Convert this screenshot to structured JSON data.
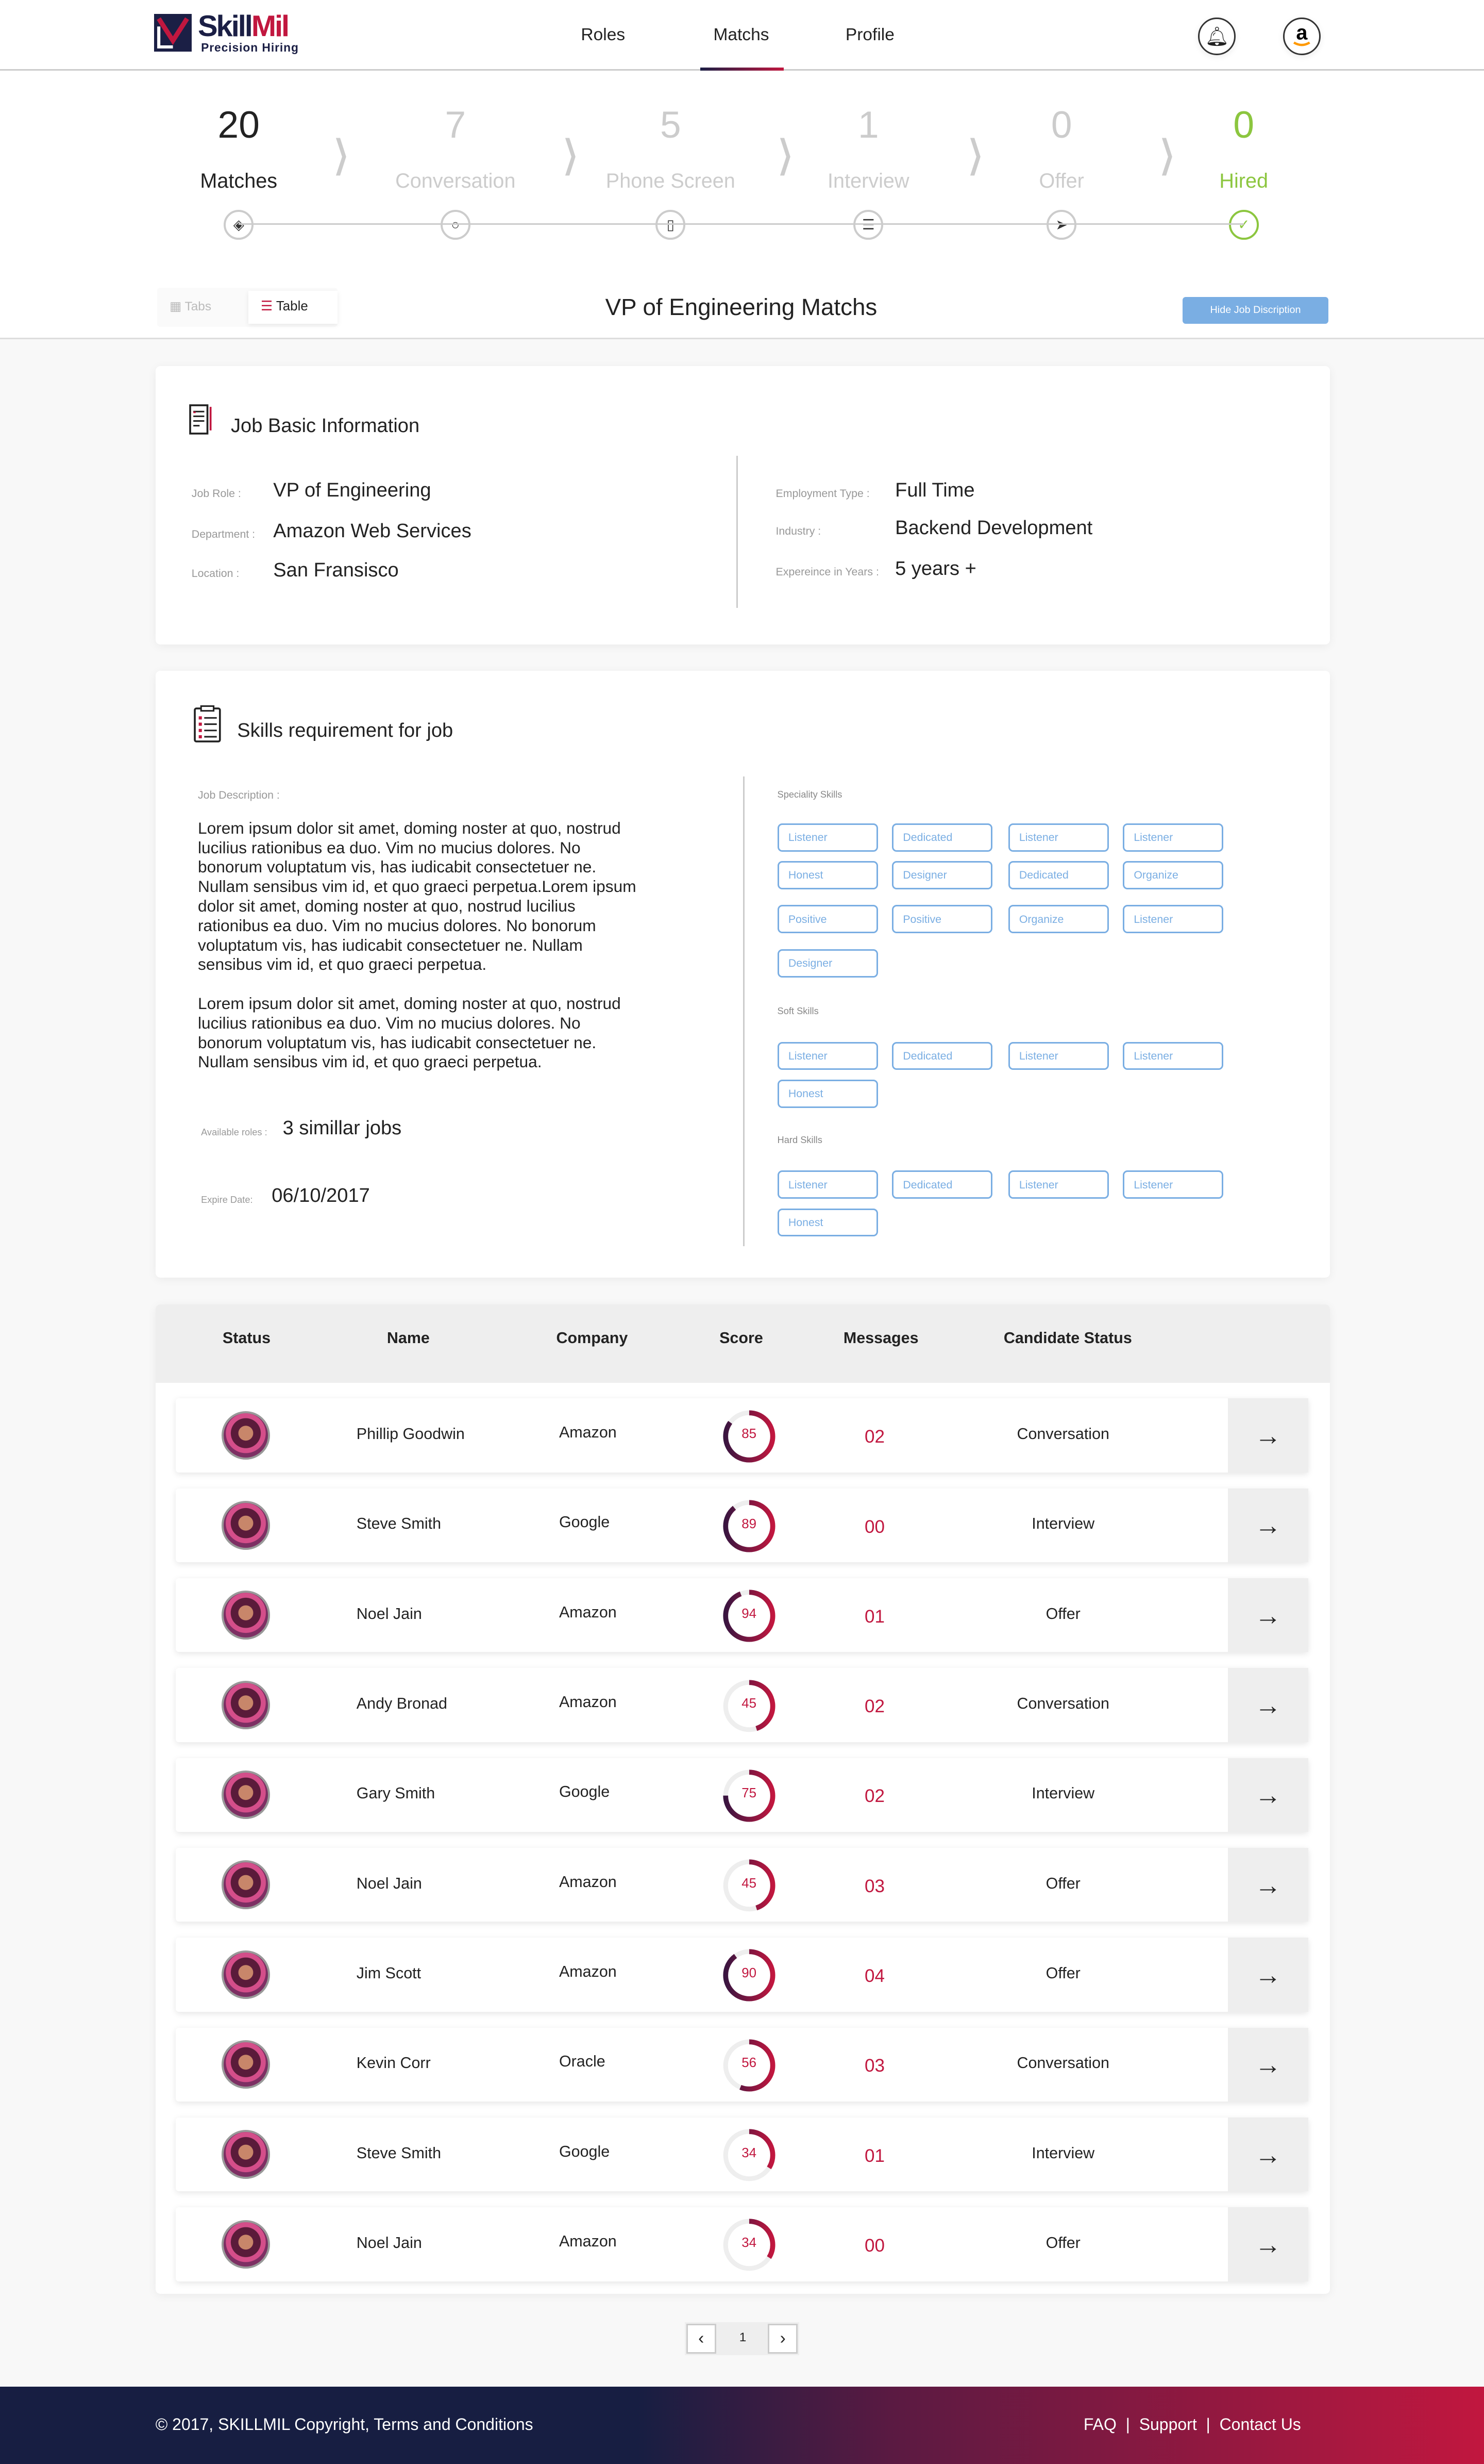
{
  "header": {
    "logo": {
      "brand_part1": "Skill",
      "brand_part2": "Mil",
      "tagline": "Precision  Hiring"
    },
    "nav": [
      {
        "label": "Roles"
      },
      {
        "label": "Matchs",
        "active": true
      },
      {
        "label": "Profile"
      }
    ],
    "icons": [
      "bell-icon",
      "amazon-avatar"
    ]
  },
  "pipeline": [
    {
      "count": "20",
      "label": "Matches",
      "icon": "layers-icon",
      "state": "active"
    },
    {
      "count": "7",
      "label": "Conversation",
      "icon": "chat-bubble-icon",
      "state": "inactive"
    },
    {
      "count": "5",
      "label": "Phone Screen",
      "icon": "phone-icon",
      "state": "inactive"
    },
    {
      "count": "1",
      "label": "Interview",
      "icon": "clipboard-icon",
      "state": "inactive"
    },
    {
      "count": "0",
      "label": "Offer",
      "icon": "paper-plane-icon",
      "state": "inactive"
    },
    {
      "count": "0",
      "label": "Hired",
      "icon": "check-icon",
      "state": "success"
    }
  ],
  "view_toggle": {
    "tabs_label": "Tabs",
    "table_label": "Table",
    "selected": "Table"
  },
  "page_title": "VP of Engineering Matchs",
  "hide_button": "Hide Job Discription",
  "job_basic": {
    "title": "Job Basic Information",
    "left": [
      {
        "label": "Job Role :",
        "value": "VP of Engineering"
      },
      {
        "label": "Department :",
        "value": "Amazon Web Services"
      },
      {
        "label": "Location :",
        "value": "San Fransisco"
      }
    ],
    "right": [
      {
        "label": "Employment Type :",
        "value": "Full Time"
      },
      {
        "label": "Industry :",
        "value": "Backend Development"
      },
      {
        "label": "Expereince in Years :",
        "value": "5 years +"
      }
    ]
  },
  "skills_req": {
    "title": "Skills requirement for job",
    "desc_label": "Job Description :",
    "paragraphs": [
      "Lorem ipsum dolor sit amet, doming noster at quo, nostrud lucilius rationibus ea duo. Vim no mucius dolores. No bonorum voluptatum vis, has iudicabit consectetuer ne. Nullam sensibus vim id, et quo graeci perpetua.Lorem ipsum dolor sit amet, doming noster at quo, nostrud lucilius rationibus ea duo. Vim no mucius dolores. No bonorum voluptatum vis, has iudicabit consectetuer ne. Nullam sensibus vim id, et quo graeci perpetua.",
      "Lorem ipsum dolor sit amet, doming noster at quo, nostrud lucilius rationibus ea duo. Vim no mucius dolores. No bonorum voluptatum vis, has iudicabit consectetuer ne. Nullam sensibus vim id, et quo graeci perpetua."
    ],
    "available_label": "Available roles :",
    "available_value": "3 simillar jobs",
    "expire_label": "Expire Date:",
    "expire_value": "06/10/2017",
    "speciality_label": "Speciality Skills",
    "speciality": [
      "Listener",
      "Dedicated",
      "Listener",
      "Listener",
      "Honest",
      "Designer",
      "Dedicated",
      "Organize",
      "Positive",
      "Positive",
      "Organize",
      "Listener",
      "Designer"
    ],
    "soft_label": "Soft Skills",
    "soft": [
      "Listener",
      "Dedicated",
      "Listener",
      "Listener",
      "Honest"
    ],
    "hard_label": "Hard Skills",
    "hard": [
      "Listener",
      "Dedicated",
      "Listener",
      "Listener",
      "Honest"
    ]
  },
  "table": {
    "columns": [
      "Status",
      "Name",
      "Company",
      "Score",
      "Messages",
      "Candidate Status"
    ],
    "rows": [
      {
        "name": "Phillip Goodwin",
        "company": "Amazon",
        "score": 85,
        "messages": "02",
        "status": "Conversation"
      },
      {
        "name": "Steve Smith",
        "company": "Google",
        "score": 89,
        "messages": "00",
        "status": "Interview"
      },
      {
        "name": "Noel Jain",
        "company": "Amazon",
        "score": 94,
        "messages": "01",
        "status": "Offer"
      },
      {
        "name": "Andy Bronad",
        "company": "Amazon",
        "score": 45,
        "messages": "02",
        "status": "Conversation"
      },
      {
        "name": "Gary Smith",
        "company": "Google",
        "score": 75,
        "messages": "02",
        "status": "Interview"
      },
      {
        "name": "Noel Jain",
        "company": "Amazon",
        "score": 45,
        "messages": "03",
        "status": "Offer"
      },
      {
        "name": "Jim Scott",
        "company": "Amazon",
        "score": 90,
        "messages": "04",
        "status": "Offer"
      },
      {
        "name": "Kevin Corr",
        "company": "Oracle",
        "score": 56,
        "messages": "03",
        "status": "Conversation"
      },
      {
        "name": "Steve Smith",
        "company": "Google",
        "score": 34,
        "messages": "01",
        "status": "Interview"
      },
      {
        "name": "Noel Jain",
        "company": "Amazon",
        "score": 34,
        "messages": "00",
        "status": "Offer"
      }
    ]
  },
  "pagination": {
    "current": "1"
  },
  "footer": {
    "copyright": "© 2017, SKILLMIL   Copyright, Terms and Conditions",
    "links": [
      "FAQ",
      "Support",
      "Contact Us"
    ]
  },
  "colors": {
    "brand_navy": "#1b1f45",
    "brand_red": "#c1173f",
    "accent_blue": "#7aaee3",
    "success_green": "#8cc63f",
    "inactive_gray": "#cccccc"
  }
}
